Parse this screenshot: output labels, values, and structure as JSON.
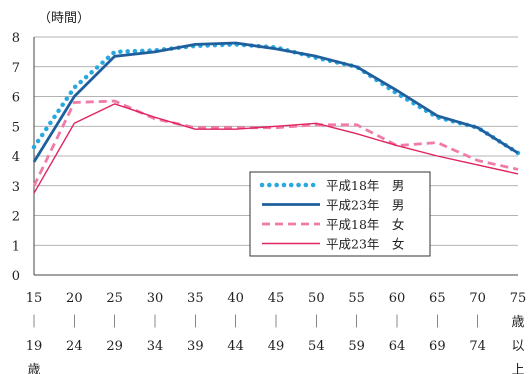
{
  "chart_data": {
    "type": "line",
    "ylabel": "（時間）",
    "xlabel": "",
    "ylim": [
      0,
      8
    ],
    "yticks": [
      "0",
      "1",
      "2",
      "3",
      "4",
      "5",
      "6",
      "7",
      "8"
    ],
    "grid": true,
    "legend_position": "lower-right",
    "categories": [
      [
        "15",
        "｜",
        "19",
        "歳"
      ],
      [
        "20",
        "｜",
        "24"
      ],
      [
        "25",
        "｜",
        "29"
      ],
      [
        "30",
        "｜",
        "34"
      ],
      [
        "35",
        "｜",
        "39"
      ],
      [
        "40",
        "｜",
        "44"
      ],
      [
        "45",
        "｜",
        "49"
      ],
      [
        "50",
        "｜",
        "54"
      ],
      [
        "55",
        "｜",
        "59"
      ],
      [
        "60",
        "｜",
        "64"
      ],
      [
        "65",
        "｜",
        "69"
      ],
      [
        "70",
        "｜",
        "74"
      ],
      [
        "75",
        "歳",
        "以",
        "上"
      ]
    ],
    "series": [
      {
        "name": "平成18年　男",
        "color": "#29a8e0",
        "style": "dotted",
        "values": [
          4.3,
          6.3,
          7.5,
          7.55,
          7.7,
          7.75,
          7.65,
          7.3,
          7.0,
          6.1,
          5.3,
          4.95,
          4.1
        ]
      },
      {
        "name": "平成23年　男",
        "color": "#1f5f9e",
        "style": "solid-thick",
        "values": [
          3.8,
          6.0,
          7.35,
          7.5,
          7.75,
          7.8,
          7.6,
          7.35,
          7.0,
          6.2,
          5.35,
          4.95,
          4.1
        ]
      },
      {
        "name": "平成18年　女",
        "color": "#f07aa8",
        "style": "dashed",
        "values": [
          3.0,
          5.8,
          5.85,
          5.25,
          4.95,
          4.95,
          4.95,
          5.05,
          5.05,
          4.35,
          4.45,
          3.85,
          3.55
        ]
      },
      {
        "name": "平成23年　女",
        "color": "#e0245e",
        "style": "solid-thin",
        "values": [
          2.75,
          5.1,
          5.75,
          5.3,
          4.9,
          4.9,
          5.0,
          5.1,
          4.75,
          4.35,
          4.0,
          3.7,
          3.4
        ]
      }
    ]
  }
}
